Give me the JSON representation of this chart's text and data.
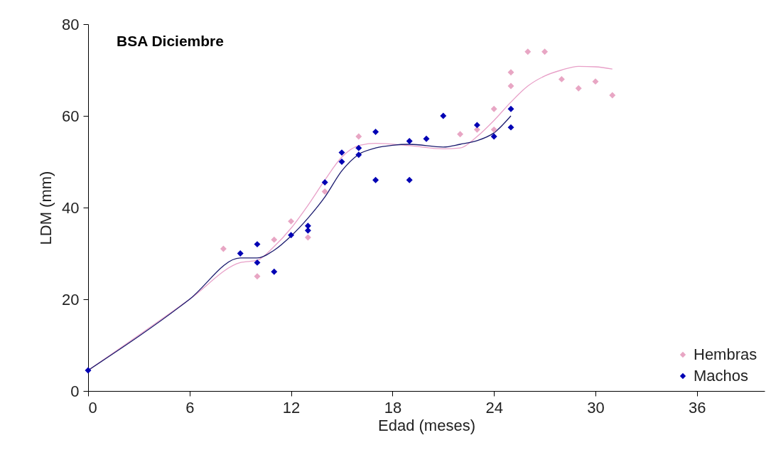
{
  "chart_data": {
    "type": "scatter",
    "title": "BSA Diciembre",
    "xlabel": "Edad (meses)",
    "ylabel": "LDM (mm)",
    "xlim": [
      0,
      40
    ],
    "xticks": [
      0,
      6,
      12,
      18,
      24,
      30,
      36
    ],
    "ylim": [
      0,
      80
    ],
    "yticks": [
      0,
      20,
      40,
      60,
      80
    ],
    "grid": false,
    "legend": "bottom right",
    "marker": "diamond",
    "series": [
      {
        "type": "line",
        "marker": "none",
        "color": "#e8a0c8",
        "x": [
          0,
          6,
          9,
          10,
          11,
          12,
          13,
          14,
          15,
          16,
          17,
          19,
          21,
          22,
          23,
          24,
          25,
          26,
          27,
          28,
          29,
          30,
          31
        ],
        "values": [
          4.5,
          20,
          28,
          28.5,
          31.5,
          35.5,
          40.5,
          46,
          51,
          53.5,
          54,
          53.5,
          52.8,
          53,
          55.5,
          59,
          63,
          66.5,
          68.7,
          70,
          70.8,
          70.7,
          70.2
        ]
      },
      {
        "type": "line",
        "marker": "none",
        "color": "#1a1a6e",
        "x": [
          0,
          6,
          9,
          10,
          11,
          12,
          13,
          14,
          15,
          16,
          17,
          18,
          19,
          21,
          22,
          23,
          24,
          25
        ],
        "values": [
          4.5,
          20,
          29,
          29,
          30.7,
          33.8,
          37.7,
          42.3,
          48,
          51.6,
          53,
          53.6,
          53.8,
          53.2,
          53.8,
          54.6,
          56.3,
          60
        ]
      },
      {
        "name": "Hembras",
        "color": "#e8a6c4",
        "x": [
          8,
          10,
          11,
          12,
          13,
          14,
          16,
          22,
          23,
          24,
          24,
          25,
          25,
          26,
          27,
          28,
          29,
          30,
          31
        ],
        "values": [
          31,
          25,
          33,
          37,
          33.5,
          43.5,
          55.5,
          56,
          57,
          61.5,
          57,
          69.5,
          66.5,
          74,
          74,
          68,
          66,
          67.5,
          64.5
        ]
      },
      {
        "name": "Machos",
        "color": "#0000b4",
        "x": [
          0,
          9,
          10,
          10,
          11,
          12,
          13,
          13,
          14,
          15,
          15,
          16,
          16,
          17,
          17,
          19,
          19,
          20,
          21,
          23,
          24,
          25,
          25
        ],
        "values": [
          4.5,
          30,
          32,
          28,
          26,
          34,
          36,
          35,
          45.5,
          52,
          50,
          53,
          51.5,
          56.5,
          46,
          54.5,
          46,
          55,
          60,
          58,
          55.5,
          61.5,
          57.5
        ]
      }
    ]
  }
}
